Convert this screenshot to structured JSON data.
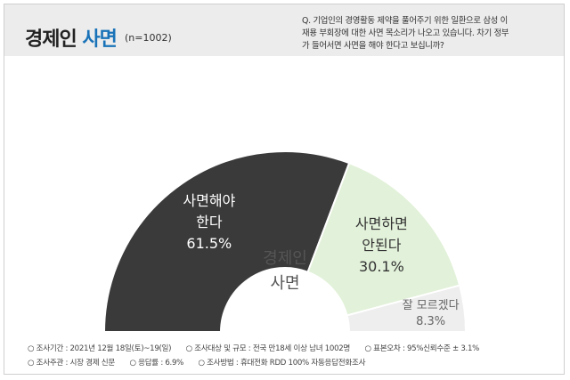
{
  "header": {
    "title_main": "경제인",
    "title_accent": "사면",
    "title_n": "(n=1002)",
    "question_lines": [
      "Q. 기업인의 경영활동 제약을 풀어주기 위한 일환으로 삼성 이",
      "재용 부회장에 대한 사면 목소리가 나오고 있습니다. 차기 정부",
      "가 들어서면 사면을 해야 한다고 보십니까?"
    ]
  },
  "center_label": [
    "경제인",
    "사면"
  ],
  "chart_data": {
    "type": "pie",
    "layout": "half-donut",
    "categories": [
      "사면해야 한다",
      "사면하면 안된다",
      "잘 모르겠다"
    ],
    "values": [
      61.5,
      30.1,
      8.3
    ],
    "value_labels": [
      "61.5%",
      "30.1%",
      "8.3%"
    ],
    "category_labels": [
      [
        "사면해야",
        "한다"
      ],
      [
        "사면하면",
        "안된다"
      ],
      [
        "잘 모르겠다"
      ]
    ],
    "colors": [
      "#3a3a3a",
      "#e2f1d9",
      "#eeeeee"
    ],
    "label_colors": [
      "#ffffff",
      "#333333",
      "#666666"
    ],
    "title": "경제인 사면"
  },
  "footer": {
    "row1": [
      "○ 조사기간 : 2021년 12월 18일(토)~19(일)",
      "○ 조사대상 및 규모 : 전국 만18세 이상 남녀 1002명",
      "○ 표본오차 : 95%신뢰수준 ± 3.1%"
    ],
    "row2": [
      "○ 조사주관 : 시장 경제 신문",
      "○ 응답률 : 6.9%",
      "○ 조사방법 : 휴대전화 RDD 100% 자동응답전화조사"
    ]
  }
}
